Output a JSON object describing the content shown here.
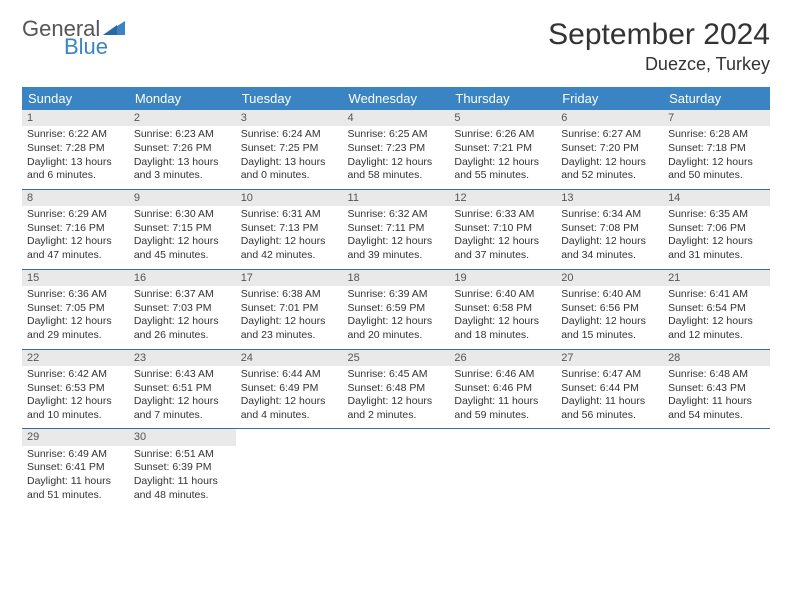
{
  "brand": {
    "word1": "General",
    "word2": "Blue"
  },
  "title": "September 2024",
  "location": "Duezce, Turkey",
  "dayHeaders": [
    "Sunday",
    "Monday",
    "Tuesday",
    "Wednesday",
    "Thursday",
    "Friday",
    "Saturday"
  ],
  "colors": {
    "headerBg": "#3b84c4",
    "headerText": "#ffffff",
    "dayStrip": "#e9e9e9",
    "rowBorder": "#3b6a9a",
    "brandBlue": "#3b84c4",
    "text": "#333333"
  },
  "days": [
    {
      "n": "1",
      "sunrise": "6:22 AM",
      "sunset": "7:28 PM",
      "dl": "13 hours and 6 minutes."
    },
    {
      "n": "2",
      "sunrise": "6:23 AM",
      "sunset": "7:26 PM",
      "dl": "13 hours and 3 minutes."
    },
    {
      "n": "3",
      "sunrise": "6:24 AM",
      "sunset": "7:25 PM",
      "dl": "13 hours and 0 minutes."
    },
    {
      "n": "4",
      "sunrise": "6:25 AM",
      "sunset": "7:23 PM",
      "dl": "12 hours and 58 minutes."
    },
    {
      "n": "5",
      "sunrise": "6:26 AM",
      "sunset": "7:21 PM",
      "dl": "12 hours and 55 minutes."
    },
    {
      "n": "6",
      "sunrise": "6:27 AM",
      "sunset": "7:20 PM",
      "dl": "12 hours and 52 minutes."
    },
    {
      "n": "7",
      "sunrise": "6:28 AM",
      "sunset": "7:18 PM",
      "dl": "12 hours and 50 minutes."
    },
    {
      "n": "8",
      "sunrise": "6:29 AM",
      "sunset": "7:16 PM",
      "dl": "12 hours and 47 minutes."
    },
    {
      "n": "9",
      "sunrise": "6:30 AM",
      "sunset": "7:15 PM",
      "dl": "12 hours and 45 minutes."
    },
    {
      "n": "10",
      "sunrise": "6:31 AM",
      "sunset": "7:13 PM",
      "dl": "12 hours and 42 minutes."
    },
    {
      "n": "11",
      "sunrise": "6:32 AM",
      "sunset": "7:11 PM",
      "dl": "12 hours and 39 minutes."
    },
    {
      "n": "12",
      "sunrise": "6:33 AM",
      "sunset": "7:10 PM",
      "dl": "12 hours and 37 minutes."
    },
    {
      "n": "13",
      "sunrise": "6:34 AM",
      "sunset": "7:08 PM",
      "dl": "12 hours and 34 minutes."
    },
    {
      "n": "14",
      "sunrise": "6:35 AM",
      "sunset": "7:06 PM",
      "dl": "12 hours and 31 minutes."
    },
    {
      "n": "15",
      "sunrise": "6:36 AM",
      "sunset": "7:05 PM",
      "dl": "12 hours and 29 minutes."
    },
    {
      "n": "16",
      "sunrise": "6:37 AM",
      "sunset": "7:03 PM",
      "dl": "12 hours and 26 minutes."
    },
    {
      "n": "17",
      "sunrise": "6:38 AM",
      "sunset": "7:01 PM",
      "dl": "12 hours and 23 minutes."
    },
    {
      "n": "18",
      "sunrise": "6:39 AM",
      "sunset": "6:59 PM",
      "dl": "12 hours and 20 minutes."
    },
    {
      "n": "19",
      "sunrise": "6:40 AM",
      "sunset": "6:58 PM",
      "dl": "12 hours and 18 minutes."
    },
    {
      "n": "20",
      "sunrise": "6:40 AM",
      "sunset": "6:56 PM",
      "dl": "12 hours and 15 minutes."
    },
    {
      "n": "21",
      "sunrise": "6:41 AM",
      "sunset": "6:54 PM",
      "dl": "12 hours and 12 minutes."
    },
    {
      "n": "22",
      "sunrise": "6:42 AM",
      "sunset": "6:53 PM",
      "dl": "12 hours and 10 minutes."
    },
    {
      "n": "23",
      "sunrise": "6:43 AM",
      "sunset": "6:51 PM",
      "dl": "12 hours and 7 minutes."
    },
    {
      "n": "24",
      "sunrise": "6:44 AM",
      "sunset": "6:49 PM",
      "dl": "12 hours and 4 minutes."
    },
    {
      "n": "25",
      "sunrise": "6:45 AM",
      "sunset": "6:48 PM",
      "dl": "12 hours and 2 minutes."
    },
    {
      "n": "26",
      "sunrise": "6:46 AM",
      "sunset": "6:46 PM",
      "dl": "11 hours and 59 minutes."
    },
    {
      "n": "27",
      "sunrise": "6:47 AM",
      "sunset": "6:44 PM",
      "dl": "11 hours and 56 minutes."
    },
    {
      "n": "28",
      "sunrise": "6:48 AM",
      "sunset": "6:43 PM",
      "dl": "11 hours and 54 minutes."
    },
    {
      "n": "29",
      "sunrise": "6:49 AM",
      "sunset": "6:41 PM",
      "dl": "11 hours and 51 minutes."
    },
    {
      "n": "30",
      "sunrise": "6:51 AM",
      "sunset": "6:39 PM",
      "dl": "11 hours and 48 minutes."
    }
  ],
  "labels": {
    "sunrise": "Sunrise:",
    "sunset": "Sunset:",
    "daylight": "Daylight:"
  }
}
